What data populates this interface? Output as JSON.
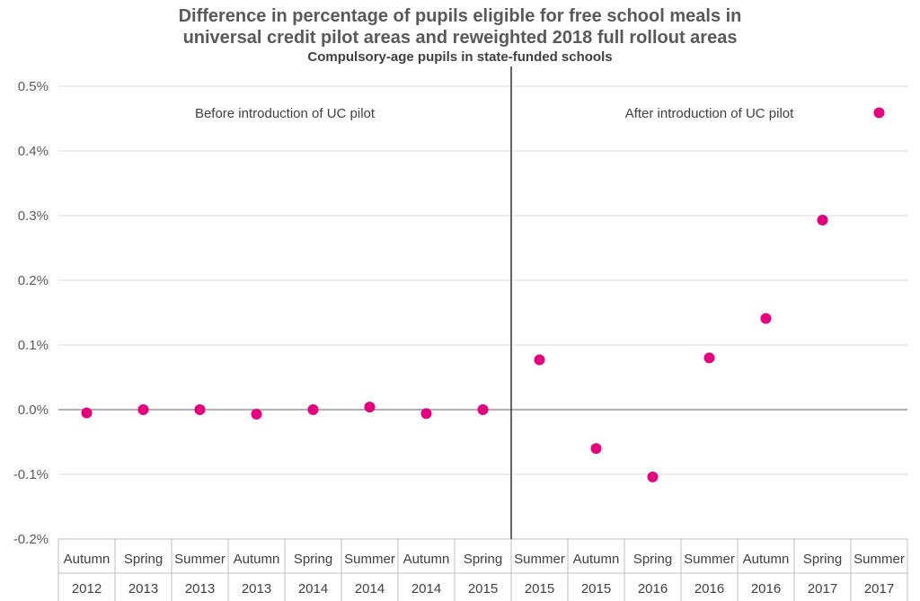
{
  "chart_data": {
    "type": "scatter",
    "title": "Difference in percentage of pupils eligible for free school meals in universal credit pilot areas and reweighted 2018 full rollout areas",
    "title_lines": [
      "Difference in percentage of pupils eligible for free school meals in",
      "universal credit pilot areas and reweighted 2018 full rollout areas"
    ],
    "subtitle": "Compulsory-age pupils in state-funded schools",
    "xlabel": "",
    "ylabel": "",
    "ylim": [
      -0.2,
      0.5
    ],
    "y_ticks": [
      "-0.2%",
      "-0.1%",
      "0.0%",
      "0.1%",
      "0.2%",
      "0.3%",
      "0.4%",
      "0.5%"
    ],
    "grid": true,
    "categories": [
      {
        "term": "Autumn",
        "year": "2012"
      },
      {
        "term": "Spring",
        "year": "2013"
      },
      {
        "term": "Summer",
        "year": "2013"
      },
      {
        "term": "Autumn",
        "year": "2013"
      },
      {
        "term": "Spring",
        "year": "2014"
      },
      {
        "term": "Summer",
        "year": "2014"
      },
      {
        "term": "Autumn",
        "year": "2014"
      },
      {
        "term": "Spring",
        "year": "2015"
      },
      {
        "term": "Summer",
        "year": "2015"
      },
      {
        "term": "Autumn",
        "year": "2015"
      },
      {
        "term": "Spring",
        "year": "2016"
      },
      {
        "term": "Summer",
        "year": "2016"
      },
      {
        "term": "Autumn",
        "year": "2016"
      },
      {
        "term": "Spring",
        "year": "2017"
      },
      {
        "term": "Summer",
        "year": "2017"
      }
    ],
    "series": [
      {
        "values": [
          -0.005,
          0.0,
          0.0,
          -0.007,
          0.0,
          0.004,
          -0.006,
          0.0,
          0.077,
          -0.06,
          -0.104,
          0.08,
          0.141,
          0.293,
          0.459
        ]
      }
    ],
    "annotations": [
      {
        "text": "Before introduction of UC pilot",
        "region": "before"
      },
      {
        "text": "After introduction of UC pilot",
        "region": "after"
      }
    ],
    "divider_after_category_index": 7,
    "marker_color": "#E6007E"
  }
}
